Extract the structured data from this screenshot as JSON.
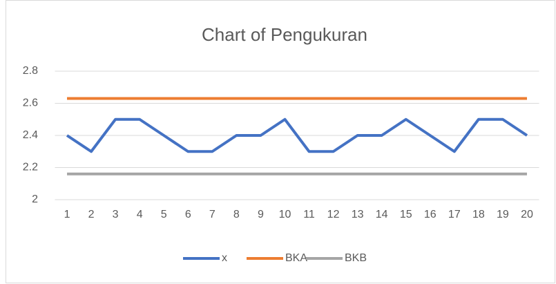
{
  "chart_data": {
    "type": "line",
    "title": "Chart of Pengukuran",
    "categories": [
      "1",
      "2",
      "3",
      "4",
      "5",
      "6",
      "7",
      "8",
      "9",
      "10",
      "11",
      "12",
      "13",
      "14",
      "15",
      "16",
      "17",
      "18",
      "19",
      "20"
    ],
    "series": [
      {
        "name": "x",
        "color": "#4472c4",
        "values": [
          2.4,
          2.3,
          2.5,
          2.5,
          2.4,
          2.3,
          2.3,
          2.4,
          2.4,
          2.5,
          2.3,
          2.3,
          2.4,
          2.4,
          2.5,
          2.4,
          2.3,
          2.5,
          2.5,
          2.4
        ]
      },
      {
        "name": "BKA",
        "color": "#ed7d31",
        "values": [
          2.63,
          2.63,
          2.63,
          2.63,
          2.63,
          2.63,
          2.63,
          2.63,
          2.63,
          2.63,
          2.63,
          2.63,
          2.63,
          2.63,
          2.63,
          2.63,
          2.63,
          2.63,
          2.63,
          2.63
        ]
      },
      {
        "name": "BKB",
        "color": "#a5a5a5",
        "values": [
          2.16,
          2.16,
          2.16,
          2.16,
          2.16,
          2.16,
          2.16,
          2.16,
          2.16,
          2.16,
          2.16,
          2.16,
          2.16,
          2.16,
          2.16,
          2.16,
          2.16,
          2.16,
          2.16,
          2.16
        ]
      }
    ],
    "ylim": [
      2,
      2.8
    ],
    "yticks": [
      2,
      2.2,
      2.4,
      2.6,
      2.8
    ],
    "grid": true,
    "legend": "bottom"
  }
}
